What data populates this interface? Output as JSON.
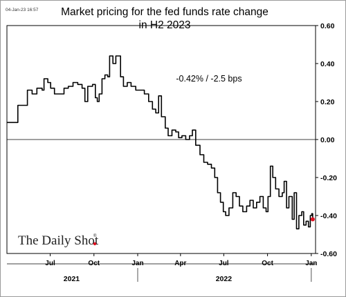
{
  "chart_data": {
    "type": "line",
    "title_lines": [
      "Market pricing for the fed funds rate change",
      "in H2 2023"
    ],
    "timestamp": "04-Jan-23 16:57",
    "annotation": "-0.42%  /  -2.5 bps",
    "brand": "The Daily Shot",
    "brand_mark": "®",
    "ylim": [
      -0.6,
      0.6
    ],
    "yticks": [
      "0.60",
      "0.40",
      "0.20",
      "0.00",
      "-0.20",
      "-0.40",
      "-0.60"
    ],
    "ytick_values": [
      0.6,
      0.4,
      0.2,
      0.0,
      -0.2,
      -0.4,
      -0.6
    ],
    "xlim": [
      "2021-04-01",
      "2023-01-10"
    ],
    "xticks": [
      {
        "label": "Jul",
        "date": "2021-07-01"
      },
      {
        "label": "Oct",
        "date": "2021-10-01"
      },
      {
        "label": "Jan",
        "date": "2022-01-01"
      },
      {
        "label": "Apr",
        "date": "2022-04-01"
      },
      {
        "label": "Jul",
        "date": "2022-07-01"
      },
      {
        "label": "Oct",
        "date": "2022-10-01"
      },
      {
        "label": "Jan",
        "date": "2023-01-01"
      }
    ],
    "years": [
      {
        "label": "2021",
        "center": "2021-08-15"
      },
      {
        "label": "2022",
        "center": "2022-07-01"
      }
    ],
    "year_separators": [
      "2022-01-01",
      "2023-01-01"
    ],
    "series": [
      {
        "color": "#000000",
        "points": [
          [
            "2021-04-01",
            0.09
          ],
          [
            "2021-04-20",
            0.09
          ],
          [
            "2021-04-24",
            0.18
          ],
          [
            "2021-05-10",
            0.18
          ],
          [
            "2021-05-14",
            0.26
          ],
          [
            "2021-05-24",
            0.24
          ],
          [
            "2021-06-03",
            0.27
          ],
          [
            "2021-06-14",
            0.26
          ],
          [
            "2021-06-18",
            0.32
          ],
          [
            "2021-06-26",
            0.3
          ],
          [
            "2021-07-02",
            0.27
          ],
          [
            "2021-07-10",
            0.24
          ],
          [
            "2021-07-20",
            0.24
          ],
          [
            "2021-07-30",
            0.27
          ],
          [
            "2021-08-08",
            0.28
          ],
          [
            "2021-08-18",
            0.3
          ],
          [
            "2021-08-28",
            0.29
          ],
          [
            "2021-09-06",
            0.27
          ],
          [
            "2021-09-12",
            0.2
          ],
          [
            "2021-09-18",
            0.28
          ],
          [
            "2021-09-28",
            0.29
          ],
          [
            "2021-10-04",
            0.22
          ],
          [
            "2021-10-08",
            0.2
          ],
          [
            "2021-10-12",
            0.24
          ],
          [
            "2021-10-18",
            0.32
          ],
          [
            "2021-10-24",
            0.34
          ],
          [
            "2021-10-30",
            0.33
          ],
          [
            "2021-11-03",
            0.44
          ],
          [
            "2021-11-10",
            0.4
          ],
          [
            "2021-11-16",
            0.44
          ],
          [
            "2021-11-21",
            0.44
          ],
          [
            "2021-11-26",
            0.33
          ],
          [
            "2021-12-02",
            0.28
          ],
          [
            "2021-12-10",
            0.3
          ],
          [
            "2021-12-18",
            0.28
          ],
          [
            "2021-12-28",
            0.26
          ],
          [
            "2022-01-05",
            0.26
          ],
          [
            "2022-01-15",
            0.24
          ],
          [
            "2022-01-24",
            0.2
          ],
          [
            "2022-02-01",
            0.16
          ],
          [
            "2022-02-08",
            0.14
          ],
          [
            "2022-02-14",
            0.23
          ],
          [
            "2022-02-20",
            0.12
          ],
          [
            "2022-02-28",
            0.06
          ],
          [
            "2022-03-06",
            0.02
          ],
          [
            "2022-03-14",
            0.05
          ],
          [
            "2022-03-22",
            0.04
          ],
          [
            "2022-03-28",
            0.01
          ],
          [
            "2022-04-04",
            0.02
          ],
          [
            "2022-04-12",
            0.0
          ],
          [
            "2022-04-20",
            0.02
          ],
          [
            "2022-04-26",
            0.05
          ],
          [
            "2022-05-03",
            -0.03
          ],
          [
            "2022-05-12",
            -0.08
          ],
          [
            "2022-05-20",
            -0.12
          ],
          [
            "2022-05-28",
            -0.13
          ],
          [
            "2022-06-05",
            -0.15
          ],
          [
            "2022-06-12",
            -0.2
          ],
          [
            "2022-06-18",
            -0.28
          ],
          [
            "2022-06-24",
            -0.33
          ],
          [
            "2022-06-30",
            -0.38
          ],
          [
            "2022-07-05",
            -0.4
          ],
          [
            "2022-07-12",
            -0.36
          ],
          [
            "2022-07-20",
            -0.28
          ],
          [
            "2022-07-27",
            -0.3
          ],
          [
            "2022-08-03",
            -0.35
          ],
          [
            "2022-08-10",
            -0.38
          ],
          [
            "2022-08-18",
            -0.35
          ],
          [
            "2022-08-25",
            -0.32
          ],
          [
            "2022-09-01",
            -0.36
          ],
          [
            "2022-09-08",
            -0.33
          ],
          [
            "2022-09-15",
            -0.3
          ],
          [
            "2022-09-22",
            -0.36
          ],
          [
            "2022-09-28",
            -0.38
          ],
          [
            "2022-10-02",
            -0.3
          ],
          [
            "2022-10-07",
            -0.14
          ],
          [
            "2022-10-12",
            -0.2
          ],
          [
            "2022-10-18",
            -0.26
          ],
          [
            "2022-10-25",
            -0.3
          ],
          [
            "2022-11-01",
            -0.28
          ],
          [
            "2022-11-05",
            -0.22
          ],
          [
            "2022-11-10",
            -0.36
          ],
          [
            "2022-11-15",
            -0.3
          ],
          [
            "2022-11-22",
            -0.42
          ],
          [
            "2022-11-26",
            -0.28
          ],
          [
            "2022-12-01",
            -0.47
          ],
          [
            "2022-12-06",
            -0.4
          ],
          [
            "2022-12-12",
            -0.38
          ],
          [
            "2022-12-16",
            -0.45
          ],
          [
            "2022-12-21",
            -0.43
          ],
          [
            "2022-12-26",
            -0.46
          ],
          [
            "2022-12-30",
            -0.4
          ],
          [
            "2023-01-02",
            -0.39
          ],
          [
            "2023-01-04",
            -0.42
          ]
        ]
      }
    ],
    "endpoint_color": "#e01020",
    "grid": false,
    "zero_line": true
  }
}
